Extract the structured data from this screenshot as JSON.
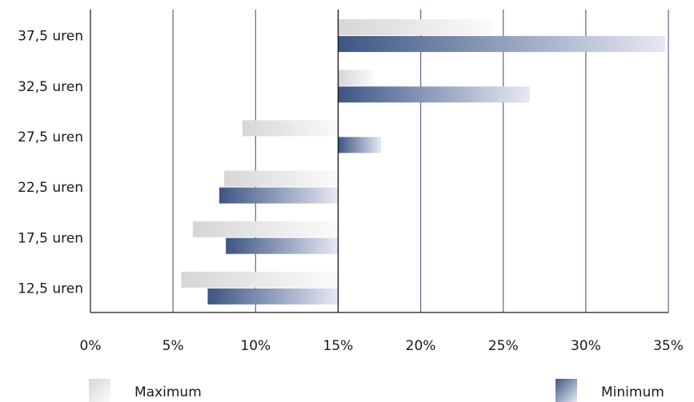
{
  "chart_data": {
    "type": "bar",
    "orientation": "horizontal",
    "categories": [
      "12,5 uren",
      "17,5 uren",
      "22,5 uren",
      "27,5 uren",
      "32,5 uren",
      "37,5 uren"
    ],
    "series": [
      {
        "name": "Maximum",
        "values": [
          5.5,
          6.2,
          8.1,
          9.2,
          17.2,
          24.4
        ],
        "color": "#e6e6e6"
      },
      {
        "name": "Minimum",
        "values": [
          7.1,
          8.2,
          7.8,
          17.6,
          26.6,
          34.8
        ],
        "color": "#5b6d99"
      }
    ],
    "baseline": 15,
    "xlim": [
      0,
      35
    ],
    "x_ticks": [
      "0%",
      "5%",
      "10%",
      "15%",
      "20%",
      "25%",
      "30%",
      "35%"
    ],
    "grid": true,
    "gridline_color": "#6e5a96",
    "legend": {
      "placement": "bottom"
    }
  }
}
